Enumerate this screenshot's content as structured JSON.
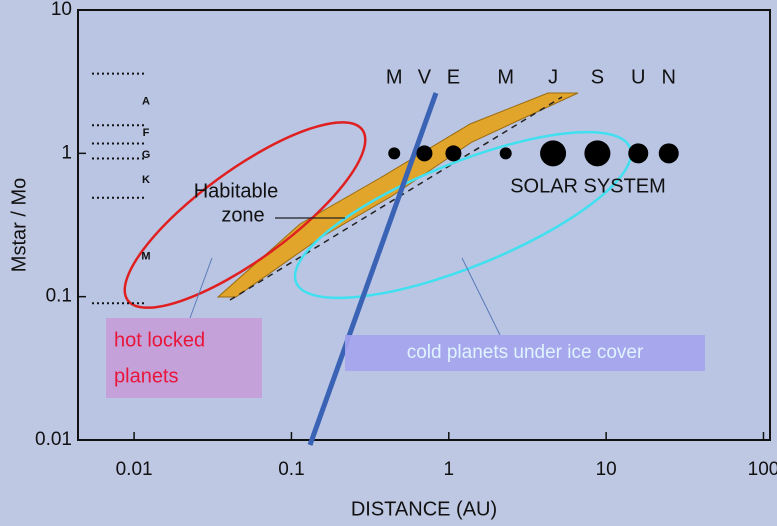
{
  "chart_data": {
    "type": "scatter",
    "x_label": "DISTANCE (AU)",
    "y_label": "Mstar / Mo",
    "xlog": true,
    "ylog": true,
    "xlim": [
      0.0044,
      110
    ],
    "ylim": [
      0.01,
      10
    ],
    "xticks": [
      0.01,
      0.1,
      1,
      10,
      100
    ],
    "yticks": [
      0.01,
      0.1,
      1,
      10
    ],
    "series": [
      {
        "color": "#000000",
        "categories": [
          "M",
          "V",
          "E",
          "M",
          "J",
          "S",
          "U",
          "N"
        ],
        "x": [
          0.45,
          0.7,
          1.07,
          2.3,
          4.6,
          8.8,
          16,
          25
        ],
        "values": [
          1,
          1,
          1,
          1,
          1,
          1,
          1,
          1
        ],
        "sizes": [
          6,
          8,
          8,
          6,
          13,
          13,
          10,
          10
        ]
      }
    ],
    "spectral_boundaries": [
      3.6,
      1.57,
      1.17,
      0.92,
      0.49,
      0.09
    ],
    "spectral_labels": [
      {
        "label": "A",
        "value": 2.3
      },
      {
        "label": "F",
        "value": 1.38
      },
      {
        "label": "G",
        "value": 0.97
      },
      {
        "label": "K",
        "value": 0.65
      },
      {
        "label": "M",
        "value": 0.19
      }
    ],
    "annotations": [
      "Habitable",
      "zone",
      "SOLAR SYSTEM",
      "hot locked",
      "planets",
      "cold planets under ice cover"
    ]
  }
}
